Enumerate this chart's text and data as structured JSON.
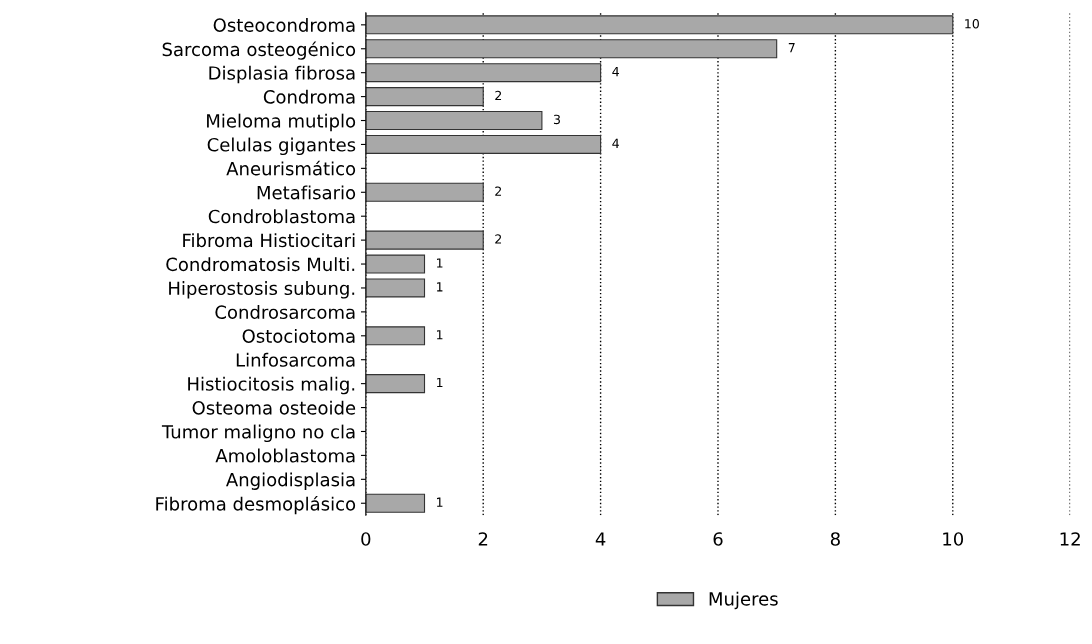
{
  "chart_data": {
    "type": "bar",
    "orientation": "horizontal",
    "categories": [
      "Osteocondroma",
      "Sarcoma osteogénico",
      "Displasia fibrosa",
      "Condroma",
      "Mieloma mutiplo",
      "Celulas gigantes",
      "Aneurismático",
      "Metafisario",
      "Condroblastoma",
      "Fibroma Histiocitari",
      "Condromatosis Multi.",
      "Hiperostosis subung.",
      "Condrosarcoma",
      "Ostociotoma",
      "Linfosarcoma",
      "Histiocitosis malig.",
      "Osteoma osteoide",
      "Tumor maligno no cla",
      "Amoloblastoma",
      "Angiodisplasia",
      "Fibroma desmoplásico"
    ],
    "series": [
      {
        "name": "Mujeres",
        "color": "#a8a8a8",
        "values": [
          10,
          7,
          4,
          2,
          3,
          4,
          0,
          2,
          0,
          2,
          1,
          1,
          0,
          1,
          0,
          1,
          0,
          0,
          0,
          0,
          1
        ],
        "value_labels": [
          "10",
          "7",
          "4",
          "2",
          "3",
          "4",
          null,
          "2",
          null,
          "2",
          "1",
          "1",
          null,
          "1",
          null,
          "1",
          null,
          null,
          null,
          null,
          "1"
        ]
      }
    ],
    "xlim": [
      0,
      12
    ],
    "xticks": [
      0,
      2,
      4,
      6,
      8,
      10,
      12
    ],
    "grid": "x",
    "legend": "bottom"
  }
}
